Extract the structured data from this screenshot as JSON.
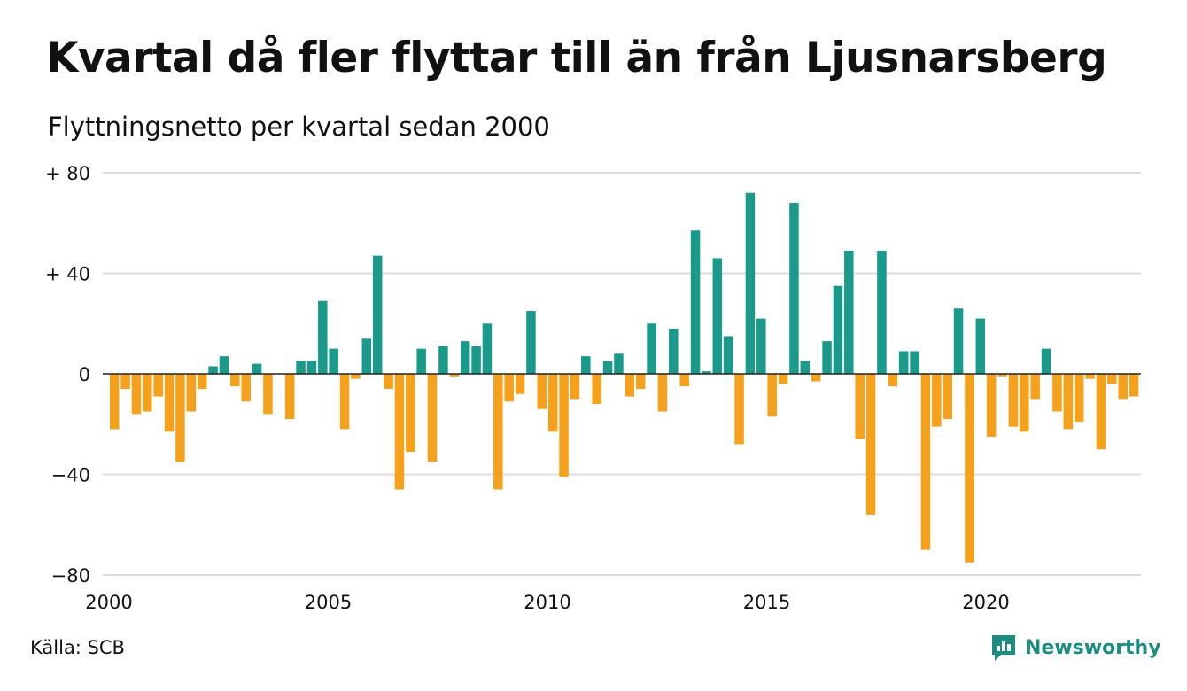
{
  "title": "Kvartal då fler flyttar till än från Ljusnarsberg",
  "subtitle": "Flyttningsnetto per kvartal sedan 2000",
  "source": "Källa: SCB",
  "brand": {
    "name": "Newsworthy",
    "logo_icon": "bar-chart-icon"
  },
  "colors": {
    "positive": "#1a9a8a",
    "negative": "#f5a11c",
    "grid": "#dcdcdc",
    "zero_line": "#222222",
    "text": "#111111",
    "brand": "#1a8c80"
  },
  "chart_data": {
    "type": "bar",
    "ylim": [
      -80,
      80
    ],
    "y_ticks": [
      {
        "value": 80,
        "label": "+ 80"
      },
      {
        "value": 40,
        "label": "+ 40"
      },
      {
        "value": 0,
        "label": "0"
      },
      {
        "value": -40,
        "label": "−40"
      },
      {
        "value": -80,
        "label": "−80"
      }
    ],
    "x_ticks": [
      "2000",
      "2005",
      "2010",
      "2015",
      "2020"
    ],
    "grid": true,
    "start": "2000 Q1",
    "series": [
      {
        "values": [
          -22,
          -6,
          -16,
          -15,
          -9,
          -23,
          -35,
          -15,
          -6,
          3,
          7,
          -5,
          -11,
          4,
          -16,
          0,
          -18,
          5,
          5,
          29,
          10,
          -22,
          -2,
          14,
          47,
          -6,
          -46,
          -31,
          10,
          -35,
          11,
          -1,
          13,
          11,
          20,
          -46,
          -11,
          -8,
          25,
          -14,
          -23,
          -41,
          -10,
          7,
          -12,
          5,
          8,
          -9,
          -6,
          20,
          -15,
          18,
          -5,
          57,
          1,
          46,
          15,
          -28,
          72,
          22,
          -17,
          -4,
          68,
          5,
          -3,
          13,
          35,
          49,
          -26,
          -56,
          49,
          -5,
          9,
          9,
          -70,
          -21,
          -18,
          26,
          -75,
          22,
          -25,
          -1,
          -21,
          -23,
          -10,
          10,
          -15,
          -22,
          -19,
          -2,
          -30,
          -4,
          -10,
          -9
        ]
      }
    ]
  }
}
